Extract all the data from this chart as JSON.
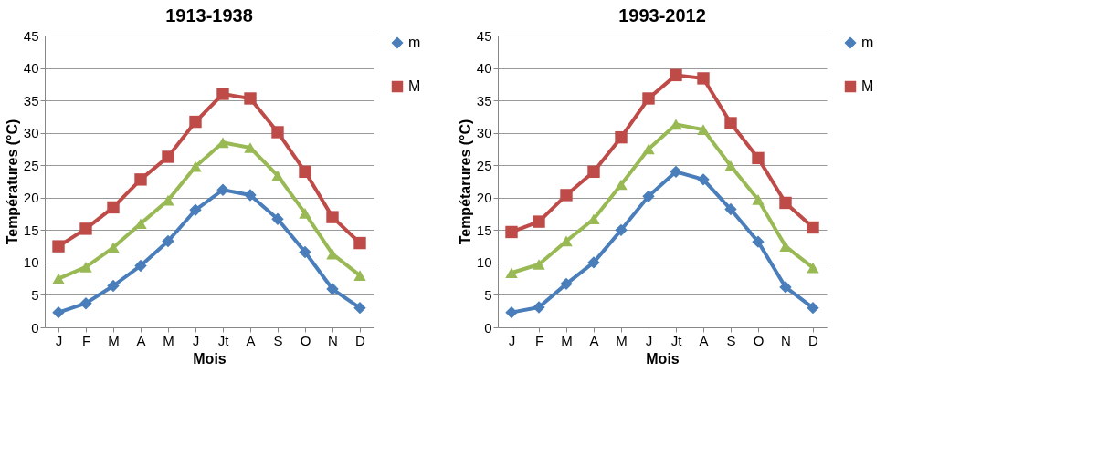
{
  "chart_data": [
    {
      "type": "line",
      "title": "1913-1938",
      "xlabel": "Mois",
      "ylabel": "Températures (°C)",
      "categories": [
        "J",
        "F",
        "M",
        "A",
        "M",
        "J",
        "Jt",
        "A",
        "S",
        "O",
        "N",
        "D"
      ],
      "ylim": [
        0,
        45
      ],
      "yticks": [
        0,
        5,
        10,
        15,
        20,
        25,
        30,
        35,
        40,
        45
      ],
      "grid": "y",
      "legend": "top right",
      "line_style": "solid",
      "series": [
        {
          "name": "m",
          "color": "#4a7ebb",
          "marker": "diamond",
          "values": [
            2.3,
            3.7,
            6.4,
            9.5,
            13.3,
            18.1,
            21.2,
            20.4,
            16.7,
            11.6,
            5.9,
            3.0
          ]
        },
        {
          "name": "M",
          "color": "#be4b48",
          "marker": "square",
          "values": [
            12.5,
            15.2,
            18.5,
            22.8,
            26.3,
            31.7,
            36.0,
            35.3,
            30.1,
            24.0,
            17.0,
            13.0
          ]
        },
        {
          "color": "#98b954",
          "marker": "triangle",
          "values": [
            7.5,
            9.3,
            12.3,
            16.0,
            19.6,
            24.8,
            28.5,
            27.7,
            23.4,
            17.6,
            11.3,
            8.0
          ]
        }
      ]
    },
    {
      "type": "line",
      "title": "1993-2012",
      "xlabel": "Mois",
      "ylabel": "Tempétarures (°C)",
      "categories": [
        "J",
        "F",
        "M",
        "A",
        "M",
        "J",
        "Jt",
        "A",
        "S",
        "O",
        "N",
        "D"
      ],
      "ylim": [
        0,
        45
      ],
      "yticks": [
        0,
        5,
        10,
        15,
        20,
        25,
        30,
        35,
        40,
        45
      ],
      "grid": "y",
      "legend": "top right",
      "line_style": "solid",
      "series": [
        {
          "name": "m",
          "color": "#4a7ebb",
          "marker": "diamond",
          "values": [
            2.3,
            3.1,
            6.7,
            10.0,
            15.0,
            20.2,
            24.0,
            22.8,
            18.2,
            13.2,
            6.2,
            3.0
          ]
        },
        {
          "name": "M",
          "color": "#be4b48",
          "marker": "square",
          "values": [
            14.7,
            16.3,
            20.4,
            24.0,
            29.3,
            35.3,
            38.9,
            38.4,
            31.5,
            26.1,
            19.2,
            15.4
          ]
        },
        {
          "color": "#98b954",
          "marker": "triangle",
          "values": [
            8.4,
            9.7,
            13.3,
            16.7,
            22.0,
            27.5,
            31.3,
            30.5,
            24.9,
            19.7,
            12.5,
            9.2
          ]
        }
      ]
    }
  ]
}
